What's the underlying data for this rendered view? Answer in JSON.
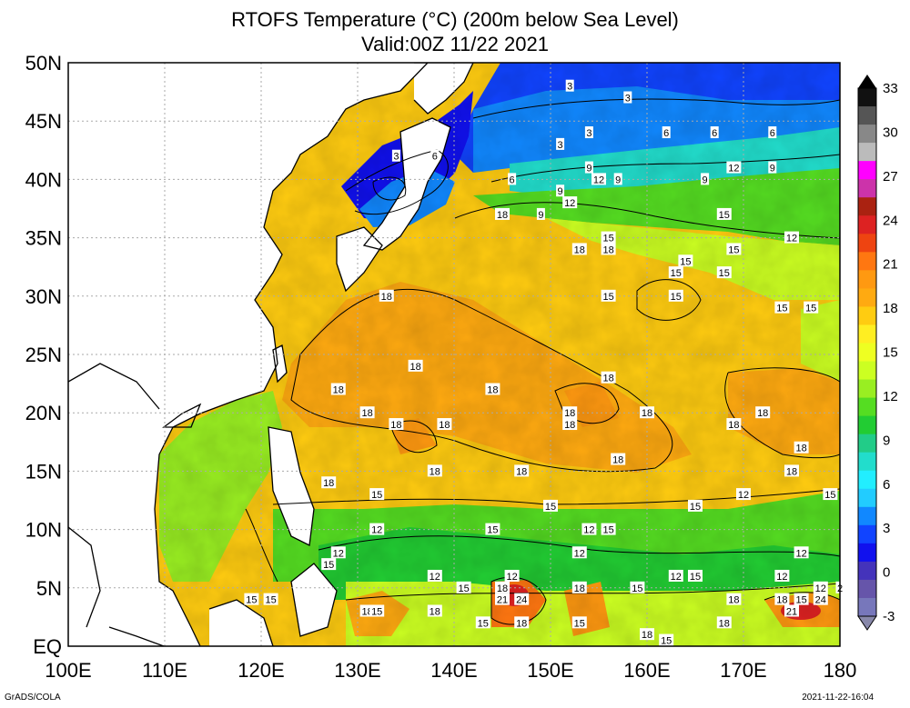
{
  "title_line1": "RTOFS Temperature (°C) (200m below Sea Level)",
  "title_line2": "Valid:00Z 11/22 2021",
  "lat_labels": [
    "50N",
    "45N",
    "40N",
    "35N",
    "30N",
    "25N",
    "20N",
    "15N",
    "10N",
    "5N",
    "EQ"
  ],
  "lon_labels": [
    "100E",
    "110E",
    "120E",
    "130E",
    "140E",
    "150E",
    "160E",
    "170E",
    "180"
  ],
  "colorbar": {
    "labels": [
      "33",
      "30",
      "27",
      "24",
      "21",
      "18",
      "15",
      "12",
      "9",
      "6",
      "3",
      "0",
      "-3"
    ],
    "colors": [
      "#111111",
      "#555555",
      "#888888",
      "#bbbbbb",
      "#ff00ff",
      "#cc33aa",
      "#aa2211",
      "#dd2222",
      "#ee4411",
      "#ff7711",
      "#ff9911",
      "#ffaa11",
      "#ffcc11",
      "#ffee22",
      "#eeff22",
      "#ccff22",
      "#99ee22",
      "#55dd22",
      "#22cc33",
      "#22cc88",
      "#22ddcc",
      "#22eeff",
      "#22ccff",
      "#1188ff",
      "#1144ff",
      "#1111ee",
      "#4433bb",
      "#6655aa",
      "#7777bb"
    ]
  },
  "contour_labels": [
    {
      "text": "3",
      "lon": 134,
      "lat": 42
    },
    {
      "text": "6",
      "lon": 138,
      "lat": 42
    },
    {
      "text": "3",
      "lon": 152,
      "lat": 48
    },
    {
      "text": "3",
      "lon": 151,
      "lat": 43
    },
    {
      "text": "3",
      "lon": 154,
      "lat": 44
    },
    {
      "text": "3",
      "lon": 158,
      "lat": 47
    },
    {
      "text": "6",
      "lon": 162,
      "lat": 44
    },
    {
      "text": "6",
      "lon": 167,
      "lat": 44
    },
    {
      "text": "6",
      "lon": 173,
      "lat": 44
    },
    {
      "text": "6",
      "lon": 146,
      "lat": 40
    },
    {
      "text": "9",
      "lon": 149,
      "lat": 37
    },
    {
      "text": "9",
      "lon": 151,
      "lat": 39
    },
    {
      "text": "9",
      "lon": 154,
      "lat": 41
    },
    {
      "text": "12",
      "lon": 155,
      "lat": 40
    },
    {
      "text": "9",
      "lon": 157,
      "lat": 40
    },
    {
      "text": "12",
      "lon": 152,
      "lat": 38
    },
    {
      "text": "9",
      "lon": 166,
      "lat": 40
    },
    {
      "text": "12",
      "lon": 169,
      "lat": 41
    },
    {
      "text": "9",
      "lon": 173,
      "lat": 41
    },
    {
      "text": "15",
      "lon": 168,
      "lat": 37
    },
    {
      "text": "18",
      "lon": 145,
      "lat": 37
    },
    {
      "text": "15",
      "lon": 156,
      "lat": 35
    },
    {
      "text": "18",
      "lon": 153,
      "lat": 34
    },
    {
      "text": "18",
      "lon": 156,
      "lat": 34
    },
    {
      "text": "15",
      "lon": 164,
      "lat": 33
    },
    {
      "text": "15",
      "lon": 169,
      "lat": 34
    },
    {
      "text": "12",
      "lon": 175,
      "lat": 35
    },
    {
      "text": "15",
      "lon": 168,
      "lat": 32
    },
    {
      "text": "15",
      "lon": 163,
      "lat": 32
    },
    {
      "text": "18",
      "lon": 133,
      "lat": 30
    },
    {
      "text": "15",
      "lon": 156,
      "lat": 30
    },
    {
      "text": "15",
      "lon": 163,
      "lat": 30
    },
    {
      "text": "15",
      "lon": 174,
      "lat": 29
    },
    {
      "text": "15",
      "lon": 177,
      "lat": 29
    },
    {
      "text": "18",
      "lon": 136,
      "lat": 24
    },
    {
      "text": "18",
      "lon": 128,
      "lat": 22
    },
    {
      "text": "18",
      "lon": 144,
      "lat": 22
    },
    {
      "text": "18",
      "lon": 156,
      "lat": 23
    },
    {
      "text": "18",
      "lon": 131,
      "lat": 20
    },
    {
      "text": "18",
      "lon": 134,
      "lat": 19
    },
    {
      "text": "18",
      "lon": 139,
      "lat": 19
    },
    {
      "text": "18",
      "lon": 152,
      "lat": 20
    },
    {
      "text": "18",
      "lon": 152,
      "lat": 19
    },
    {
      "text": "18",
      "lon": 160,
      "lat": 20
    },
    {
      "text": "18",
      "lon": 169,
      "lat": 19
    },
    {
      "text": "18",
      "lon": 172,
      "lat": 20
    },
    {
      "text": "18",
      "lon": 176,
      "lat": 17
    },
    {
      "text": "18",
      "lon": 157,
      "lat": 16
    },
    {
      "text": "18",
      "lon": 127,
      "lat": 14
    },
    {
      "text": "18",
      "lon": 138,
      "lat": 15
    },
    {
      "text": "18",
      "lon": 147,
      "lat": 15
    },
    {
      "text": "18",
      "lon": 175,
      "lat": 15
    },
    {
      "text": "12",
      "lon": 170,
      "lat": 13
    },
    {
      "text": "15",
      "lon": 179,
      "lat": 13
    },
    {
      "text": "15",
      "lon": 132,
      "lat": 13
    },
    {
      "text": "15",
      "lon": 150,
      "lat": 12
    },
    {
      "text": "15",
      "lon": 165,
      "lat": 12
    },
    {
      "text": "12",
      "lon": 132,
      "lat": 10
    },
    {
      "text": "15",
      "lon": 144,
      "lat": 10
    },
    {
      "text": "12",
      "lon": 154,
      "lat": 10
    },
    {
      "text": "15",
      "lon": 156,
      "lat": 10
    },
    {
      "text": "12",
      "lon": 128,
      "lat": 8
    },
    {
      "text": "12",
      "lon": 153,
      "lat": 8
    },
    {
      "text": "12",
      "lon": 176,
      "lat": 8
    },
    {
      "text": "15",
      "lon": 127,
      "lat": 7
    },
    {
      "text": "12",
      "lon": 138,
      "lat": 6
    },
    {
      "text": "12",
      "lon": 146,
      "lat": 6
    },
    {
      "text": "12",
      "lon": 163,
      "lat": 6
    },
    {
      "text": "15",
      "lon": 165,
      "lat": 6
    },
    {
      "text": "12",
      "lon": 174,
      "lat": 6
    },
    {
      "text": "15",
      "lon": 141,
      "lat": 5
    },
    {
      "text": "18",
      "lon": 145,
      "lat": 5
    },
    {
      "text": "18",
      "lon": 153,
      "lat": 5
    },
    {
      "text": "15",
      "lon": 159,
      "lat": 5
    },
    {
      "text": "12",
      "lon": 178,
      "lat": 5
    },
    {
      "text": "15",
      "lon": 119,
      "lat": 4
    },
    {
      "text": "15",
      "lon": 121,
      "lat": 4
    },
    {
      "text": "21",
      "lon": 145,
      "lat": 4
    },
    {
      "text": "24",
      "lon": 147,
      "lat": 4
    },
    {
      "text": "18",
      "lon": 169,
      "lat": 4
    },
    {
      "text": "18",
      "lon": 174,
      "lat": 4
    },
    {
      "text": "15",
      "lon": 176,
      "lat": 4
    },
    {
      "text": "24",
      "lon": 178,
      "lat": 4
    },
    {
      "text": "2",
      "lon": 180,
      "lat": 5
    },
    {
      "text": "18",
      "lon": 131,
      "lat": 3
    },
    {
      "text": "15",
      "lon": 132,
      "lat": 3
    },
    {
      "text": "18",
      "lon": 138,
      "lat": 3
    },
    {
      "text": "15",
      "lon": 143,
      "lat": 2
    },
    {
      "text": "18",
      "lon": 147,
      "lat": 2
    },
    {
      "text": "15",
      "lon": 153,
      "lat": 2
    },
    {
      "text": "18",
      "lon": 160,
      "lat": 1
    },
    {
      "text": "15",
      "lon": 162,
      "lat": 0.5
    },
    {
      "text": "18",
      "lon": 168,
      "lat": 2
    },
    {
      "text": "21",
      "lon": 175,
      "lat": 3
    }
  ],
  "footer_left": "GrADS/COLA",
  "footer_right": "2021-11-22-16:04"
}
